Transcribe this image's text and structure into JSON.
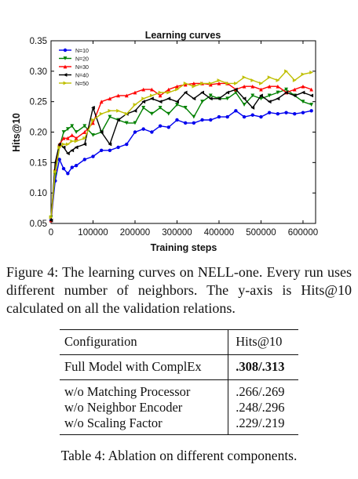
{
  "chart_data": {
    "type": "line",
    "title": "Learning curves",
    "xlabel": "Training steps",
    "ylabel": "Hits@10",
    "xlim": [
      0,
      630000
    ],
    "ylim": [
      0.05,
      0.35
    ],
    "xticks": [
      0,
      100000,
      200000,
      300000,
      400000,
      500000,
      600000
    ],
    "yticks": [
      0.05,
      0.1,
      0.15,
      0.2,
      0.25,
      0.3,
      0.35
    ],
    "xtick_labels": [
      "0",
      "100000",
      "200000",
      "300000",
      "400000",
      "500000",
      "600000"
    ],
    "ytick_labels": [
      "0.05",
      "0.10",
      "0.15",
      "0.20",
      "0.25",
      "0.30",
      "0.35"
    ],
    "legend_position": "top-left",
    "grid": false,
    "series": [
      {
        "name": "N=10",
        "color": "#0000ee",
        "marker": "circle",
        "x": [
          0,
          10000,
          20000,
          30000,
          40000,
          50000,
          60000,
          80000,
          100000,
          120000,
          140000,
          160000,
          180000,
          200000,
          220000,
          240000,
          260000,
          280000,
          300000,
          320000,
          340000,
          360000,
          380000,
          400000,
          420000,
          440000,
          460000,
          480000,
          500000,
          520000,
          540000,
          560000,
          580000,
          600000,
          620000
        ],
        "y": [
          0.055,
          0.12,
          0.155,
          0.14,
          0.132,
          0.142,
          0.145,
          0.155,
          0.16,
          0.17,
          0.17,
          0.175,
          0.18,
          0.2,
          0.205,
          0.2,
          0.21,
          0.208,
          0.22,
          0.215,
          0.215,
          0.22,
          0.22,
          0.225,
          0.225,
          0.235,
          0.225,
          0.228,
          0.225,
          0.232,
          0.23,
          0.232,
          0.23,
          0.232,
          0.235
        ]
      },
      {
        "name": "N=20",
        "color": "#008000",
        "marker": "triangle-down",
        "x": [
          0,
          10000,
          20000,
          30000,
          40000,
          50000,
          60000,
          80000,
          100000,
          120000,
          140000,
          160000,
          180000,
          200000,
          220000,
          240000,
          260000,
          280000,
          300000,
          320000,
          340000,
          360000,
          380000,
          400000,
          420000,
          440000,
          460000,
          480000,
          500000,
          520000,
          540000,
          560000,
          580000,
          600000,
          620000
        ],
        "y": [
          0.06,
          0.13,
          0.175,
          0.2,
          0.205,
          0.21,
          0.2,
          0.21,
          0.195,
          0.2,
          0.225,
          0.22,
          0.215,
          0.215,
          0.24,
          0.23,
          0.24,
          0.23,
          0.245,
          0.24,
          0.225,
          0.25,
          0.26,
          0.255,
          0.255,
          0.265,
          0.245,
          0.26,
          0.255,
          0.26,
          0.265,
          0.27,
          0.26,
          0.25,
          0.245
        ]
      },
      {
        "name": "N=30",
        "color": "#ff0000",
        "marker": "triangle-up",
        "x": [
          0,
          10000,
          20000,
          30000,
          40000,
          50000,
          60000,
          80000,
          100000,
          120000,
          140000,
          160000,
          180000,
          200000,
          220000,
          240000,
          260000,
          280000,
          300000,
          320000,
          340000,
          360000,
          380000,
          400000,
          420000,
          440000,
          460000,
          480000,
          500000,
          520000,
          540000,
          560000,
          580000,
          600000,
          620000
        ],
        "y": [
          0.055,
          0.14,
          0.18,
          0.19,
          0.19,
          0.195,
          0.19,
          0.2,
          0.215,
          0.25,
          0.255,
          0.26,
          0.26,
          0.265,
          0.27,
          0.27,
          0.26,
          0.27,
          0.275,
          0.278,
          0.28,
          0.28,
          0.278,
          0.28,
          0.28,
          0.27,
          0.275,
          0.275,
          0.27,
          0.275,
          0.275,
          0.265,
          0.27,
          0.275,
          0.27
        ]
      },
      {
        "name": "N=40",
        "color": "#000000",
        "marker": "left-arrow",
        "x": [
          0,
          10000,
          20000,
          30000,
          40000,
          50000,
          60000,
          80000,
          100000,
          120000,
          140000,
          160000,
          180000,
          200000,
          220000,
          240000,
          260000,
          280000,
          300000,
          320000,
          340000,
          360000,
          380000,
          400000,
          420000,
          440000,
          460000,
          480000,
          500000,
          520000,
          540000,
          560000,
          580000,
          600000,
          620000
        ],
        "y": [
          0.055,
          0.15,
          0.18,
          0.175,
          0.165,
          0.17,
          0.175,
          0.18,
          0.24,
          0.2,
          0.18,
          0.22,
          0.23,
          0.235,
          0.25,
          0.255,
          0.25,
          0.255,
          0.25,
          0.265,
          0.255,
          0.265,
          0.255,
          0.255,
          0.265,
          0.27,
          0.255,
          0.24,
          0.26,
          0.25,
          0.255,
          0.265,
          0.26,
          0.265,
          0.26
        ]
      },
      {
        "name": "N=50",
        "color": "#bfbf00",
        "marker": "right-arrow",
        "x": [
          0,
          10000,
          20000,
          30000,
          40000,
          50000,
          60000,
          80000,
          100000,
          120000,
          140000,
          160000,
          180000,
          200000,
          220000,
          240000,
          260000,
          280000,
          300000,
          320000,
          340000,
          360000,
          380000,
          400000,
          420000,
          440000,
          460000,
          480000,
          500000,
          520000,
          540000,
          560000,
          580000,
          600000,
          620000
        ],
        "y": [
          0.06,
          0.135,
          0.175,
          0.18,
          0.18,
          0.185,
          0.185,
          0.19,
          0.22,
          0.23,
          0.235,
          0.235,
          0.23,
          0.245,
          0.255,
          0.26,
          0.265,
          0.265,
          0.27,
          0.28,
          0.275,
          0.28,
          0.28,
          0.285,
          0.28,
          0.28,
          0.29,
          0.285,
          0.28,
          0.29,
          0.285,
          0.3,
          0.285,
          0.295,
          0.298
        ]
      }
    ]
  },
  "figure_caption": "Figure 4: The learning curves on NELL-one. Every run uses different number of neighbors. The y-axis is Hits@10 calculated on all the validation relations.",
  "table": {
    "headers": [
      "Configuration",
      "Hits@10"
    ],
    "full_model": {
      "config": "Full Model with ComplEx",
      "value": ".308/.313"
    },
    "ablations": [
      {
        "config": "w/o Matching Processor",
        "value": ".266/.269"
      },
      {
        "config": "w/o Neighbor Encoder",
        "value": ".248/.296"
      },
      {
        "config": "w/o Scaling Factor",
        "value": ".229/.219"
      }
    ]
  },
  "table_caption": "Table 4: Ablation on different components."
}
